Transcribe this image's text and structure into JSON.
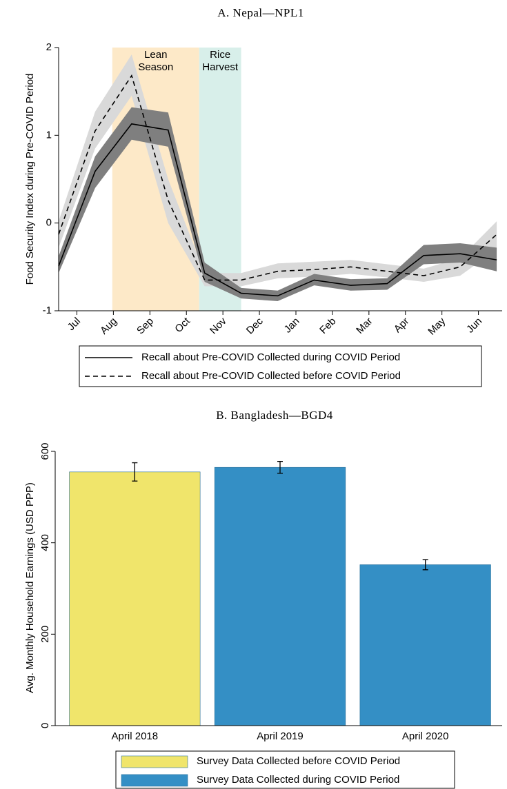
{
  "chart_data": [
    {
      "type": "line",
      "title": "A. Nepal—NPL1",
      "y_label": "Food Security Index during Pre-COVID Period",
      "x": [
        0,
        1,
        2,
        3,
        4,
        5,
        6,
        7,
        8,
        9,
        10,
        11,
        12
      ],
      "xlim": [
        0,
        12.15
      ],
      "xticks": [
        {
          "value": 0.5,
          "label": "Jul"
        },
        {
          "value": 1.5,
          "label": "Aug"
        },
        {
          "value": 2.5,
          "label": "Sep"
        },
        {
          "value": 3.5,
          "label": "Oct"
        },
        {
          "value": 4.5,
          "label": "Nov"
        },
        {
          "value": 5.5,
          "label": "Dec"
        },
        {
          "value": 6.5,
          "label": "Jan"
        },
        {
          "value": 7.5,
          "label": "Feb"
        },
        {
          "value": 8.5,
          "label": "Mar"
        },
        {
          "value": 9.5,
          "label": "Apr"
        },
        {
          "value": 10.5,
          "label": "May"
        },
        {
          "value": 11.5,
          "label": "Jun"
        }
      ],
      "ylim": [
        -1,
        2
      ],
      "yticks": [
        -1,
        0,
        1,
        2
      ],
      "shaded_regions": [
        {
          "lines": [
            "Lean",
            "Season"
          ],
          "x": [
            1.47,
            3.85
          ],
          "color": "#fde9c8"
        },
        {
          "lines": [
            "Rice",
            "Harvest"
          ],
          "x": [
            3.85,
            5.0
          ],
          "color": "#d8efea"
        }
      ],
      "series": [
        {
          "name": "Recall about Pre-COVID Collected before COVID Period",
          "color": "#000000",
          "band_color": "#d9d9d9",
          "dash": true,
          "values": [
            -0.13,
            1.05,
            1.68,
            0.26,
            -0.65,
            -0.65,
            -0.55,
            -0.53,
            -0.5,
            -0.55,
            -0.6,
            -0.5,
            -0.13
          ],
          "lower": [
            -0.28,
            0.85,
            1.45,
            0.0,
            -0.72,
            -0.72,
            -0.63,
            -0.61,
            -0.58,
            -0.62,
            -0.67,
            -0.6,
            -0.3
          ],
          "upper": [
            0.02,
            1.27,
            1.92,
            0.5,
            -0.57,
            -0.57,
            -0.46,
            -0.44,
            -0.42,
            -0.47,
            -0.52,
            -0.4,
            0.02
          ]
        },
        {
          "name": "Recall about Pre-COVID Collected during COVID Period",
          "color": "#000000",
          "band_color": "#7f7f7f",
          "dash": false,
          "values": [
            -0.49,
            0.59,
            1.13,
            1.06,
            -0.57,
            -0.8,
            -0.83,
            -0.65,
            -0.71,
            -0.69,
            -0.37,
            -0.35,
            -0.42
          ],
          "lower": [
            -0.57,
            0.4,
            0.95,
            0.87,
            -0.67,
            -0.86,
            -0.89,
            -0.71,
            -0.77,
            -0.76,
            -0.47,
            -0.45,
            -0.55
          ],
          "upper": [
            -0.38,
            0.76,
            1.32,
            1.26,
            -0.45,
            -0.74,
            -0.77,
            -0.58,
            -0.64,
            -0.63,
            -0.25,
            -0.23,
            -0.28
          ]
        }
      ]
    },
    {
      "type": "bar",
      "title": "B. Bangladesh—BGD4",
      "y_label": "Avg. Monthly Household Earnings (USD PPP)",
      "categories": [
        "April 2018",
        "April 2019",
        "April 2020"
      ],
      "values": [
        555,
        565,
        352
      ],
      "errors": [
        20,
        13,
        11
      ],
      "colors": [
        "#f0e56b",
        "#348fc5",
        "#348fc5"
      ],
      "ylim": [
        0,
        600
      ],
      "yticks": [
        0,
        200,
        400,
        600
      ],
      "legend": [
        {
          "name": "Survey Data Collected before COVID Period",
          "color": "#f0e56b"
        },
        {
          "name": "Survey Data Collected during COVID Period",
          "color": "#348fc5"
        }
      ]
    }
  ]
}
